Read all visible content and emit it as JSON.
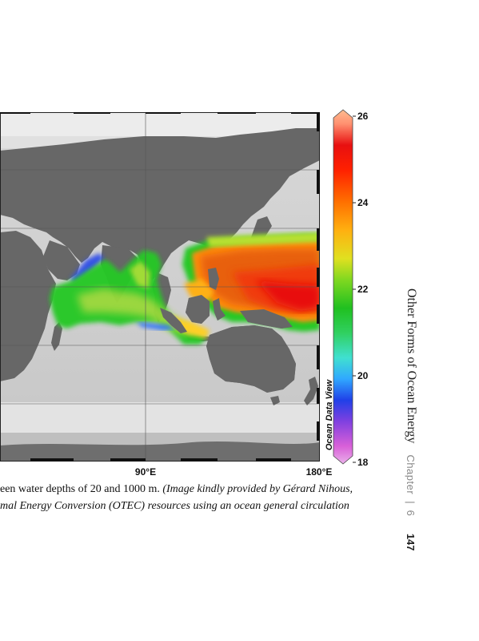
{
  "map": {
    "lon_labels": [
      "90°E",
      "180°E"
    ],
    "watermark": "Ocean Data View"
  },
  "colorbar": {
    "range": [
      18,
      26
    ],
    "tick_labels": [
      "26",
      "24",
      "22",
      "20",
      "18"
    ],
    "colors": [
      "#e8a8e8",
      "#d040d0",
      "#2040e0",
      "#30b0ff",
      "#30e0c0",
      "#20c020",
      "#60d020",
      "#c0e020",
      "#ffc020",
      "#ff8000",
      "#ff2000",
      "#e00000",
      "#ff8080",
      "#ffb080"
    ]
  },
  "caption": {
    "line1_normal": "een water depths of 20 and 1000 m. ",
    "line1_italic": "(Image kindly provided by Gérard Nihous,",
    "line2_italic": "mal Energy Conversion (OTEC) resources using an ocean general circulation"
  },
  "running_head": {
    "title": "Other Forms of Ocean Energy",
    "chapter_label": "Chapter",
    "separator": "|",
    "chapter_number": "6",
    "page_number": "147"
  }
}
